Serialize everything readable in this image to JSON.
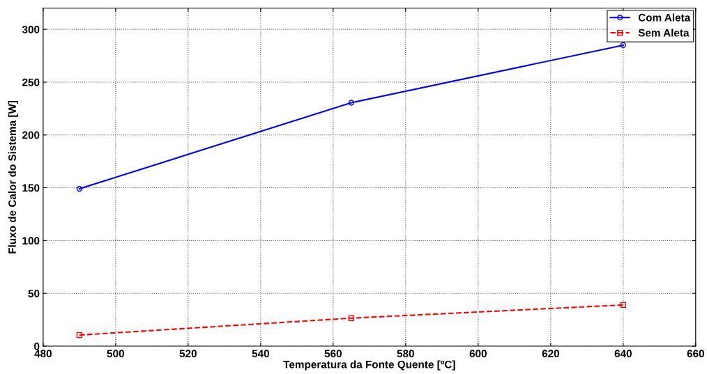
{
  "chart_data": {
    "type": "line",
    "xlabel": "Temperatura da Fonte Quente [ºC]",
    "ylabel": "Fluxo de Calor do Sistema [W]",
    "x": [
      490,
      565,
      640
    ],
    "series": [
      {
        "name": "Com Aleta",
        "color": "#0000ff",
        "values": [
          149,
          230.5,
          285
        ],
        "marker": "circle",
        "line_style": "solid"
      },
      {
        "name": "Sem Aleta",
        "color": "#ff0000",
        "values": [
          10.5,
          26.5,
          39
        ],
        "marker": "square",
        "line_style": "dashed"
      }
    ],
    "xlim": [
      480,
      660
    ],
    "xticks": [
      480,
      500,
      520,
      540,
      560,
      580,
      600,
      620,
      640,
      660
    ],
    "ylim": [
      0,
      320
    ],
    "yticks": [
      0,
      50,
      100,
      150,
      200,
      250,
      300
    ],
    "grid": true,
    "legend": "top right"
  }
}
